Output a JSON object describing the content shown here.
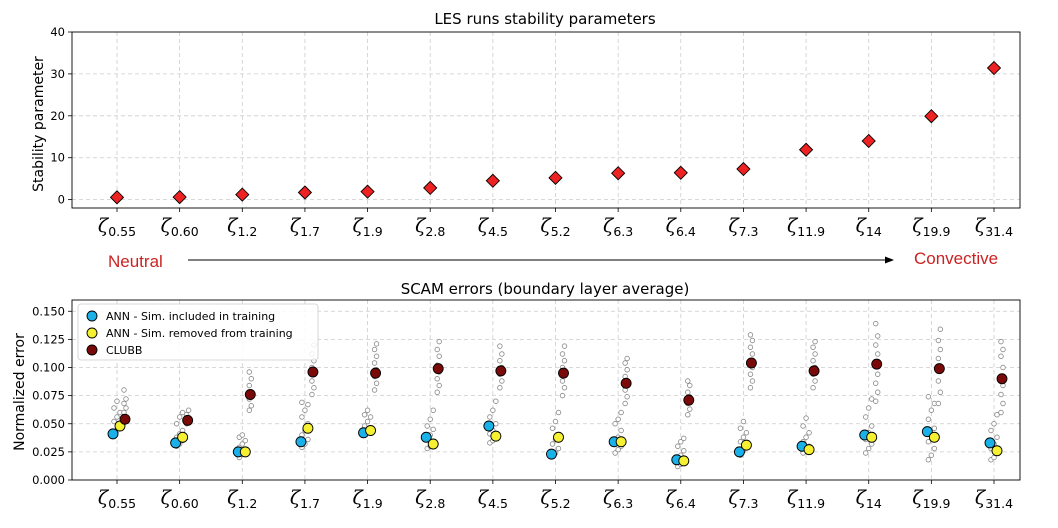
{
  "chart_data": [
    {
      "type": "scatter",
      "title": "LES runs stability parameters",
      "xlabel": "",
      "ylabel": "Stability parameter",
      "ylim": [
        -2,
        40
      ],
      "yticks": [
        0,
        10,
        20,
        30,
        40
      ],
      "grid": true,
      "categories": [
        {
          "base": "ζ",
          "sub": "0.55"
        },
        {
          "base": "ζ",
          "sub": "0.60"
        },
        {
          "base": "ζ",
          "sub": "1.2"
        },
        {
          "base": "ζ",
          "sub": "1.7"
        },
        {
          "base": "ζ",
          "sub": "1.9"
        },
        {
          "base": "ζ",
          "sub": "2.8"
        },
        {
          "base": "ζ",
          "sub": "4.5"
        },
        {
          "base": "ζ",
          "sub": "5.2"
        },
        {
          "base": "ζ",
          "sub": "6.3"
        },
        {
          "base": "ζ",
          "sub": "6.4"
        },
        {
          "base": "ζ",
          "sub": "7.3"
        },
        {
          "base": "ζ",
          "sub": "11.9"
        },
        {
          "base": "ζ",
          "sub": "14"
        },
        {
          "base": "ζ",
          "sub": "19.9"
        },
        {
          "base": "ζ",
          "sub": "31.4"
        }
      ],
      "series": [
        {
          "name": "Stability parameter",
          "marker": "diamond",
          "color": "#ee2222",
          "values": [
            0.55,
            0.6,
            1.2,
            1.7,
            1.9,
            2.8,
            4.5,
            5.2,
            6.3,
            6.4,
            7.3,
            11.9,
            14,
            19.9,
            31.4
          ]
        }
      ],
      "annotations": {
        "left_label": "Neutral",
        "right_label": "Convective",
        "label_color": "#cc2222"
      }
    },
    {
      "type": "scatter",
      "title": "SCAM errors (boundary layer average)",
      "xlabel": "",
      "ylabel": "Normalized error",
      "ylim": [
        0.0,
        0.16
      ],
      "yticks": [
        "0.000",
        "0.025",
        "0.050",
        "0.075",
        "0.100",
        "0.125",
        "0.150"
      ],
      "grid": true,
      "legend_position": "top-left",
      "categories": [
        {
          "base": "ζ",
          "sub": "0.55"
        },
        {
          "base": "ζ",
          "sub": "0.60"
        },
        {
          "base": "ζ",
          "sub": "1.2"
        },
        {
          "base": "ζ",
          "sub": "1.7"
        },
        {
          "base": "ζ",
          "sub": "1.9"
        },
        {
          "base": "ζ",
          "sub": "2.8"
        },
        {
          "base": "ζ",
          "sub": "4.5"
        },
        {
          "base": "ζ",
          "sub": "5.2"
        },
        {
          "base": "ζ",
          "sub": "6.3"
        },
        {
          "base": "ζ",
          "sub": "6.4"
        },
        {
          "base": "ζ",
          "sub": "7.3"
        },
        {
          "base": "ζ",
          "sub": "11.9"
        },
        {
          "base": "ζ",
          "sub": "14"
        },
        {
          "base": "ζ",
          "sub": "19.9"
        },
        {
          "base": "ζ",
          "sub": "31.4"
        }
      ],
      "series": [
        {
          "name": "ANN - Sim. included in training",
          "color": "#1ab0e8",
          "values": [
            0.041,
            0.033,
            0.025,
            0.034,
            0.042,
            0.038,
            0.048,
            0.023,
            0.034,
            0.018,
            0.025,
            0.03,
            0.04,
            0.043,
            0.033
          ]
        },
        {
          "name": "ANN - Sim. removed from training",
          "color": "#f5f032",
          "values": [
            0.048,
            0.038,
            0.025,
            0.046,
            0.044,
            0.032,
            0.039,
            0.038,
            0.034,
            0.017,
            0.031,
            0.027,
            0.038,
            0.038,
            0.026
          ]
        },
        {
          "name": "CLUBB",
          "color": "#7a0a0a",
          "values": [
            0.054,
            0.053,
            0.076,
            0.096,
            0.095,
            0.099,
            0.097,
            0.095,
            0.086,
            0.071,
            0.104,
            0.097,
            0.103,
            0.099,
            0.09
          ]
        }
      ],
      "scatter_members": {
        "color": "#888888",
        "groups": [
          {
            "ann": [
              0.04,
              0.044,
              0.048,
              0.052,
              0.056,
              0.06,
              0.064,
              0.07
            ],
            "clubb": [
              0.052,
              0.056,
              0.06,
              0.064,
              0.068,
              0.072,
              0.08
            ]
          },
          {
            "ann": [
              0.03,
              0.032,
              0.035,
              0.038,
              0.041,
              0.044,
              0.05,
              0.056,
              0.06
            ],
            "clubb": [
              0.05,
              0.054,
              0.058,
              0.062
            ]
          },
          {
            "ann": [
              0.02,
              0.023,
              0.026,
              0.029,
              0.032,
              0.035,
              0.038,
              0.04
            ],
            "clubb": [
              0.062,
              0.066,
              0.072,
              0.078,
              0.084,
              0.09,
              0.096
            ]
          },
          {
            "ann": [
              0.029,
              0.032,
              0.036,
              0.04,
              0.044,
              0.05,
              0.056,
              0.062,
              0.067,
              0.069
            ],
            "clubb": [
              0.076,
              0.082,
              0.088,
              0.094,
              0.1,
              0.106,
              0.112,
              0.12
            ]
          },
          {
            "ann": [
              0.04,
              0.042,
              0.045,
              0.048,
              0.052,
              0.056,
              0.058,
              0.062
            ],
            "clubb": [
              0.08,
              0.086,
              0.092,
              0.098,
              0.104,
              0.11,
              0.116,
              0.121
            ]
          },
          {
            "ann": [
              0.028,
              0.03,
              0.033,
              0.036,
              0.04,
              0.045,
              0.048,
              0.054,
              0.062
            ],
            "clubb": [
              0.078,
              0.084,
              0.09,
              0.096,
              0.102,
              0.11,
              0.116,
              0.123
            ]
          },
          {
            "ann": [
              0.033,
              0.035,
              0.038,
              0.041,
              0.044,
              0.05,
              0.056,
              0.062,
              0.07
            ],
            "clubb": [
              0.082,
              0.088,
              0.094,
              0.1,
              0.106,
              0.112,
              0.119
            ]
          },
          {
            "ann": [
              0.021,
              0.024,
              0.028,
              0.032,
              0.036,
              0.04,
              0.046,
              0.052,
              0.06
            ],
            "clubb": [
              0.075,
              0.082,
              0.088,
              0.094,
              0.1,
              0.106,
              0.112,
              0.119
            ]
          },
          {
            "ann": [
              0.024,
              0.027,
              0.03,
              0.034,
              0.038,
              0.044,
              0.05,
              0.054,
              0.06
            ],
            "clubb": [
              0.068,
              0.074,
              0.08,
              0.086,
              0.092,
              0.098,
              0.104,
              0.108
            ]
          },
          {
            "ann": [
              0.012,
              0.014,
              0.016,
              0.019,
              0.022,
              0.026,
              0.03,
              0.034,
              0.037
            ],
            "clubb": [
              0.058,
              0.063,
              0.068,
              0.074,
              0.078,
              0.084,
              0.088
            ]
          },
          {
            "ann": [
              0.022,
              0.026,
              0.03,
              0.034,
              0.038,
              0.042,
              0.046,
              0.052
            ],
            "clubb": [
              0.082,
              0.088,
              0.094,
              0.1,
              0.106,
              0.112,
              0.118,
              0.124,
              0.129
            ]
          },
          {
            "ann": [
              0.024,
              0.027,
              0.03,
              0.034,
              0.038,
              0.042,
              0.048,
              0.055
            ],
            "clubb": [
              0.082,
              0.088,
              0.094,
              0.1,
              0.106,
              0.112,
              0.118,
              0.123
            ]
          },
          {
            "ann": [
              0.024,
              0.028,
              0.032,
              0.036,
              0.042,
              0.048,
              0.056,
              0.064,
              0.072
            ],
            "clubb": [
              0.07,
              0.078,
              0.086,
              0.094,
              0.102,
              0.112,
              0.12,
              0.128,
              0.139
            ]
          },
          {
            "ann": [
              0.018,
              0.022,
              0.028,
              0.034,
              0.04,
              0.046,
              0.054,
              0.062,
              0.068,
              0.074
            ],
            "clubb": [
              0.068,
              0.078,
              0.088,
              0.098,
              0.108,
              0.116,
              0.124,
              0.134
            ]
          },
          {
            "ann": [
              0.018,
              0.02,
              0.024,
              0.028,
              0.032,
              0.038,
              0.044,
              0.05,
              0.058
            ],
            "clubb": [
              0.06,
              0.068,
              0.076,
              0.084,
              0.092,
              0.1,
              0.11,
              0.116,
              0.123
            ]
          }
        ]
      }
    }
  ]
}
